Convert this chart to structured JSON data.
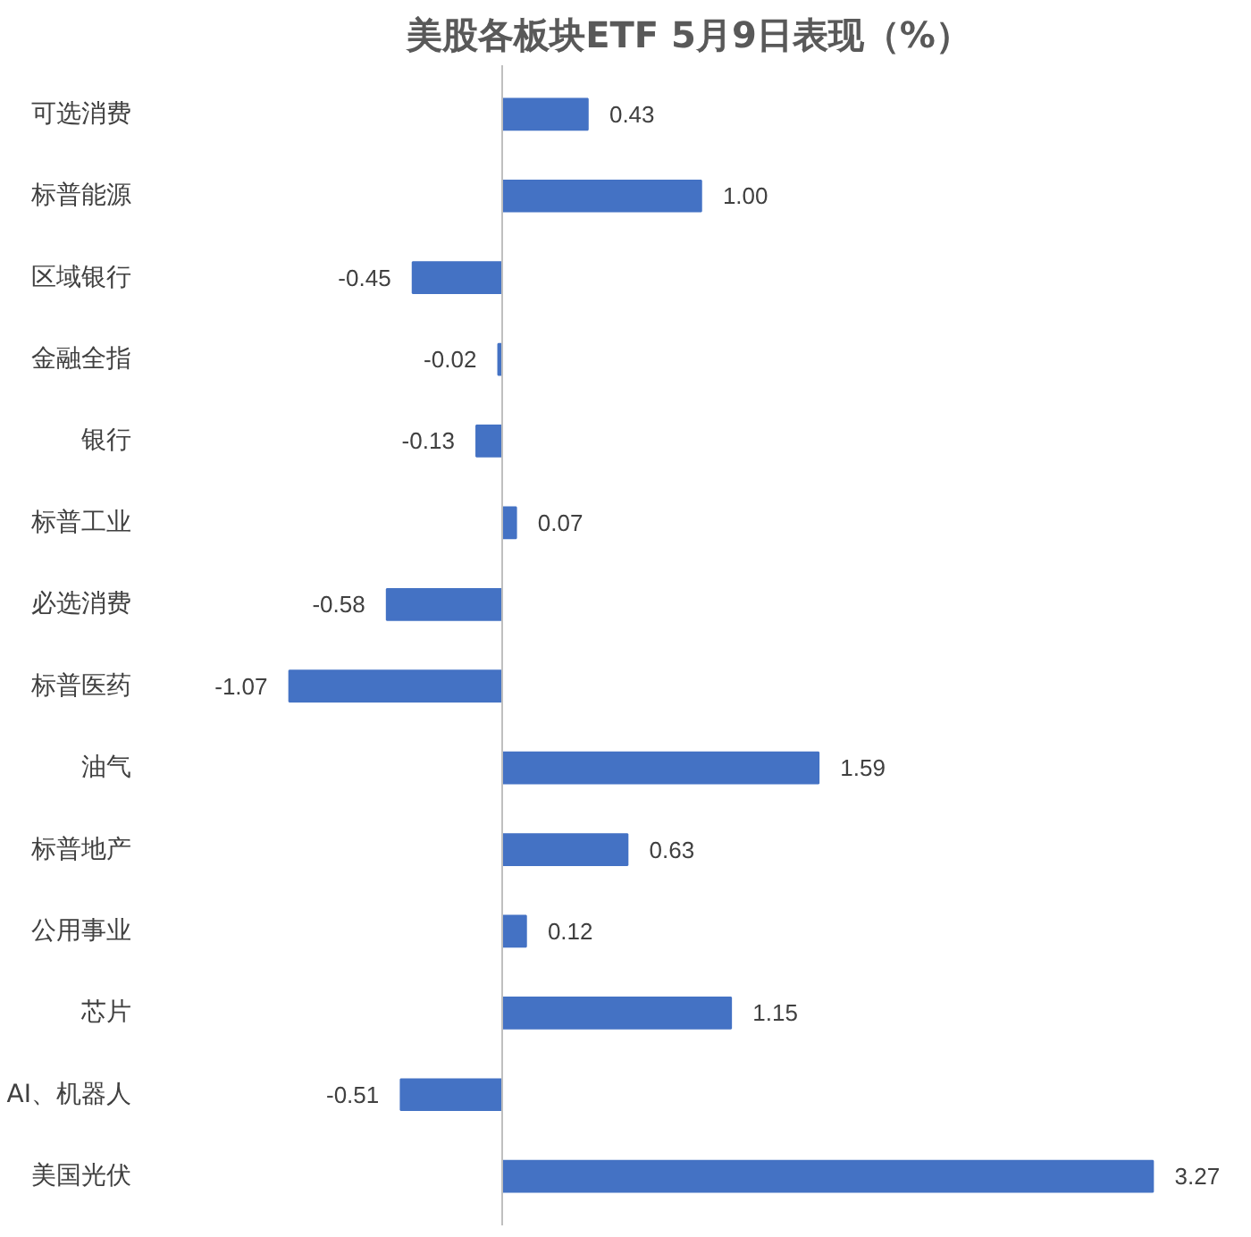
{
  "chart_data": {
    "type": "bar",
    "orientation": "horizontal",
    "title": "美股各板块ETF  5月9日表现（%）",
    "categories": [
      "可选消费",
      "标普能源",
      "区域银行",
      "金融全指",
      "银行",
      "标普工业",
      "必选消费",
      "标普医药",
      "油气",
      "标普地产",
      "公用事业",
      "芯片",
      "AI、机器人",
      "美国光伏"
    ],
    "values": [
      0.43,
      1.0,
      -0.45,
      -0.02,
      -0.13,
      0.07,
      -0.58,
      -1.07,
      1.59,
      0.63,
      0.12,
      1.15,
      -0.51,
      3.27
    ],
    "value_labels": [
      "0.43",
      "1.00",
      "-0.45",
      "-0.02",
      "-0.13",
      "0.07",
      "-0.58",
      "-1.07",
      "1.59",
      "0.63",
      "0.12",
      "1.15",
      "-0.51",
      "3.27"
    ],
    "color": "#4472c4",
    "grid": false
  }
}
